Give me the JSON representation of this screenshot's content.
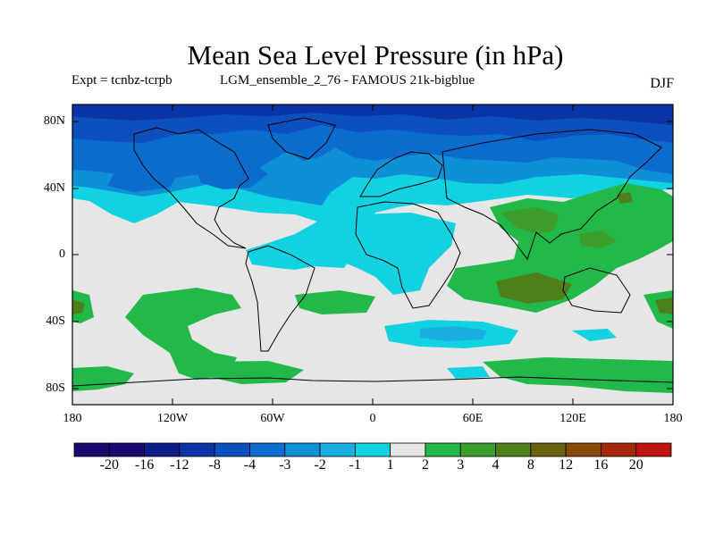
{
  "title": "Mean Sea Level Pressure (in hPa)",
  "subtitle_left": "Expt = tcnbz-tcrpb",
  "subtitle_mid": "LGM_ensemble_2_76 - FAMOUS 21k-bigblue",
  "season": "DJF",
  "colors": {
    "frame": "#000000",
    "levels": [
      "#1b0a6e",
      "#0b1d8a",
      "#0a33a6",
      "#0c4fbd",
      "#0b6cce",
      "#0e8fd6",
      "#1aaedf",
      "#11d2e0",
      "#e6e6e6",
      "#22b84a",
      "#3d9e2c",
      "#4f7f1a",
      "#6b6210",
      "#8a4a08",
      "#a4290a",
      "#c01410"
    ],
    "land": "#000000"
  },
  "chart_data": {
    "type": "filled-contour-map",
    "variable": "Mean Sea Level Pressure anomaly",
    "units": "hPa",
    "lon_range": [
      -180,
      180
    ],
    "lat_range": [
      -90,
      90
    ],
    "lat_ticks": [
      "80N",
      "40N",
      "0",
      "40S",
      "80S"
    ],
    "lon_ticks": [
      "180",
      "120W",
      "60W",
      "0",
      "60E",
      "120E",
      "180"
    ],
    "colorbar_levels": [
      "-20",
      "-16",
      "-12",
      "-8",
      "-4",
      "-3",
      "-2",
      "-1",
      "1",
      "2",
      "3",
      "4",
      "8",
      "12",
      "16",
      "20"
    ],
    "regions": [
      {
        "name": "arctic-strong-low",
        "range": "-8 to -4",
        "color_index": 3
      },
      {
        "name": "northern-midlatitude-low",
        "range": "-4 to -2",
        "color_index": 5
      },
      {
        "name": "tropical-atlantic-weak-low",
        "range": "-2 to -1",
        "color_index": 7
      },
      {
        "name": "asia-indian-high",
        "range": "2 to 4",
        "color_index": 9
      },
      {
        "name": "southern-ocean-low",
        "range": "-2 to -1",
        "color_index": 7
      },
      {
        "name": "antarctic-coast-high",
        "range": "1 to 2",
        "color_index": 9
      }
    ]
  }
}
